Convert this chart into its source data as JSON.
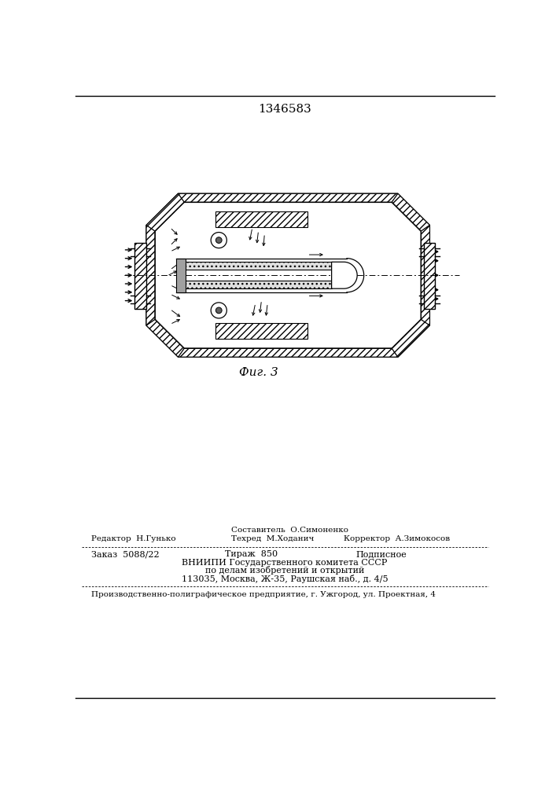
{
  "patent_number": "1346583",
  "fig_label": "Фиг. 3",
  "editor_line": "Редактор  Н.Гунько",
  "composer_line": "Составитель  О.Симоненко",
  "techred_line": "Техред  М.Ходанич",
  "corrector_line": "Корректор  А.Зимокосов",
  "order_line": "Заказ  5088/22",
  "tirazh_line": "Тираж  850",
  "podpisnoe_line": "Подписное",
  "vniip1": "ВНИИПИ Государственного комитета СССР",
  "vniip2": "по делам изобретений и открытий",
  "vniip3": "113035, Москва, Ж-35, Раушская наб., д. 4/5",
  "factory_line": "Производственно-полиграфическое предприятие, г. Ужгород, ул. Проектная, 4",
  "bg_color": "#ffffff",
  "line_color": "#000000",
  "text_color": "#000000"
}
